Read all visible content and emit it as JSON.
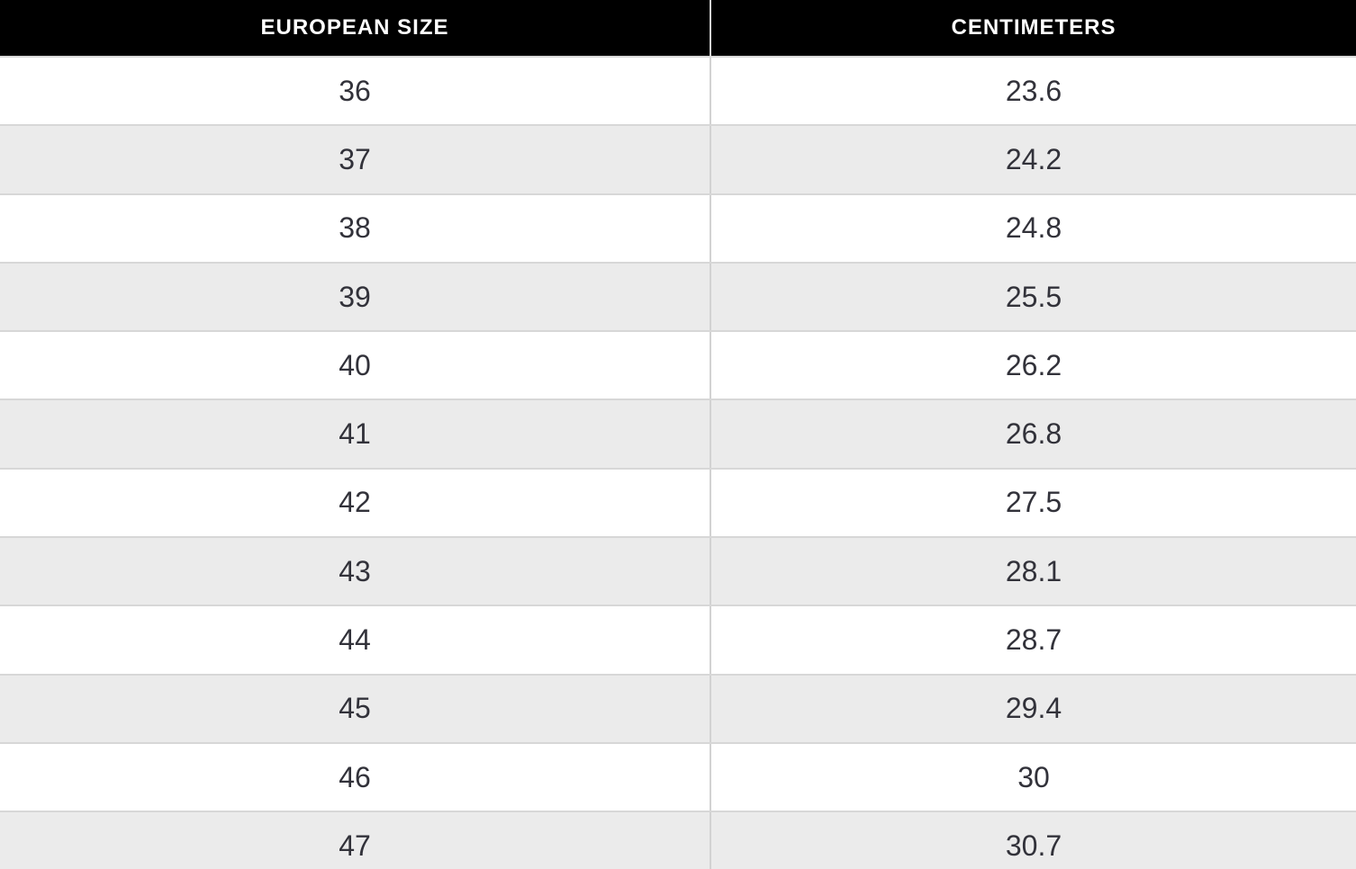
{
  "table": {
    "name": "shoe-size-conversion-chart",
    "columns": [
      {
        "label": "EUROPEAN SIZE"
      },
      {
        "label": "CENTIMETERS"
      }
    ],
    "rows": [
      {
        "european_size": "36",
        "centimeters": "23.6"
      },
      {
        "european_size": "37",
        "centimeters": "24.2"
      },
      {
        "european_size": "38",
        "centimeters": "24.8"
      },
      {
        "european_size": "39",
        "centimeters": "25.5"
      },
      {
        "european_size": "40",
        "centimeters": "26.2"
      },
      {
        "european_size": "41",
        "centimeters": "26.8"
      },
      {
        "european_size": "42",
        "centimeters": "27.5"
      },
      {
        "european_size": "43",
        "centimeters": "28.1"
      },
      {
        "european_size": "44",
        "centimeters": "28.7"
      },
      {
        "european_size": "45",
        "centimeters": "29.4"
      },
      {
        "european_size": "46",
        "centimeters": "30"
      },
      {
        "european_size": "47",
        "centimeters": "30.7"
      }
    ],
    "colors": {
      "header_background": "#000000",
      "header_text": "#ffffff",
      "row_even_background": "#ffffff",
      "row_odd_background": "#ebebeb",
      "row_text": "#32323a",
      "divider": "#d2d2d2"
    }
  }
}
